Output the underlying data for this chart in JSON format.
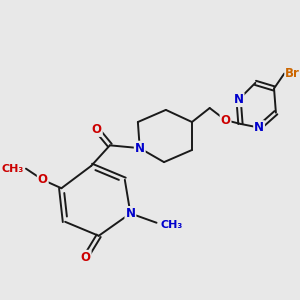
{
  "background_color": "#e8e8e8",
  "bond_color": "#1a1a1a",
  "atom_colors": {
    "N": "#0000cc",
    "O": "#cc0000",
    "Br": "#cc6600"
  },
  "figsize": [
    3.0,
    3.0
  ],
  "dpi": 100
}
